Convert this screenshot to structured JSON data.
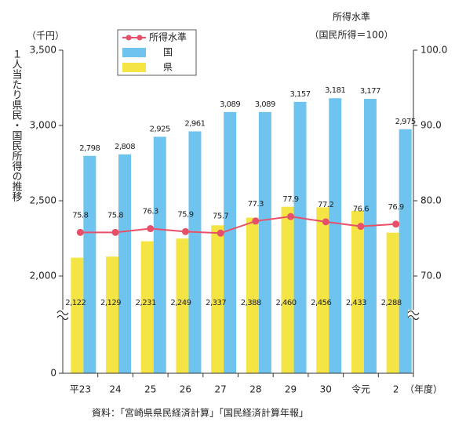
{
  "chart_data": {
    "type": "bar",
    "y_label": "１人当たり県民・国民所得の推移",
    "y_unit": "（千円）",
    "y2_label": "所得水準",
    "y2_unit": "（国民所得＝100）",
    "x_label": "（年度）",
    "source": "資料：「宮崎県県民経済計算」「国民経済計算年報」",
    "categories": [
      "平23",
      "24",
      "25",
      "26",
      "27",
      "28",
      "29",
      "30",
      "令元",
      "2"
    ],
    "series": [
      {
        "name": "所得水準",
        "type": "line",
        "axis": "y2",
        "color": "#e8506a",
        "values": [
          75.8,
          75.8,
          76.3,
          75.9,
          75.7,
          77.3,
          77.9,
          77.2,
          76.6,
          76.9
        ]
      },
      {
        "name": "国",
        "type": "bar",
        "color": "#6ec4ee",
        "values": [
          2798,
          2808,
          2925,
          2961,
          3089,
          3089,
          3157,
          3181,
          3177,
          2975
        ],
        "value_labels": [
          "2,798",
          "2,808",
          "2,925",
          "2,961",
          "3,089",
          "3,089",
          "3,157",
          "3,181",
          "3,177",
          "2,975"
        ]
      },
      {
        "name": "県",
        "type": "bar",
        "color": "#f4e545",
        "values": [
          2122,
          2129,
          2231,
          2249,
          2337,
          2388,
          2460,
          2456,
          2433,
          2288
        ],
        "value_labels": [
          "2,122",
          "2,129",
          "2,231",
          "2,249",
          "2,337",
          "2,388",
          "2,460",
          "2,456",
          "2,433",
          "2,288"
        ]
      }
    ],
    "ylim": [
      0,
      3500
    ],
    "yticks": [
      0,
      {
        "value": 2000,
        "label": "2,000"
      },
      {
        "value": 2500,
        "label": "2,500"
      },
      {
        "value": 3000,
        "label": "3,000"
      },
      {
        "value": 3500,
        "label": "3,500"
      }
    ],
    "y_axis_break": true,
    "y2lim": [
      70,
      100
    ],
    "y2ticks": [
      {
        "value": 70,
        "label": "70.0"
      },
      {
        "value": 80,
        "label": "80.0"
      },
      {
        "value": 90,
        "label": "90.0"
      },
      {
        "value": 100,
        "label": "100.0"
      }
    ],
    "legend": "top-left"
  }
}
